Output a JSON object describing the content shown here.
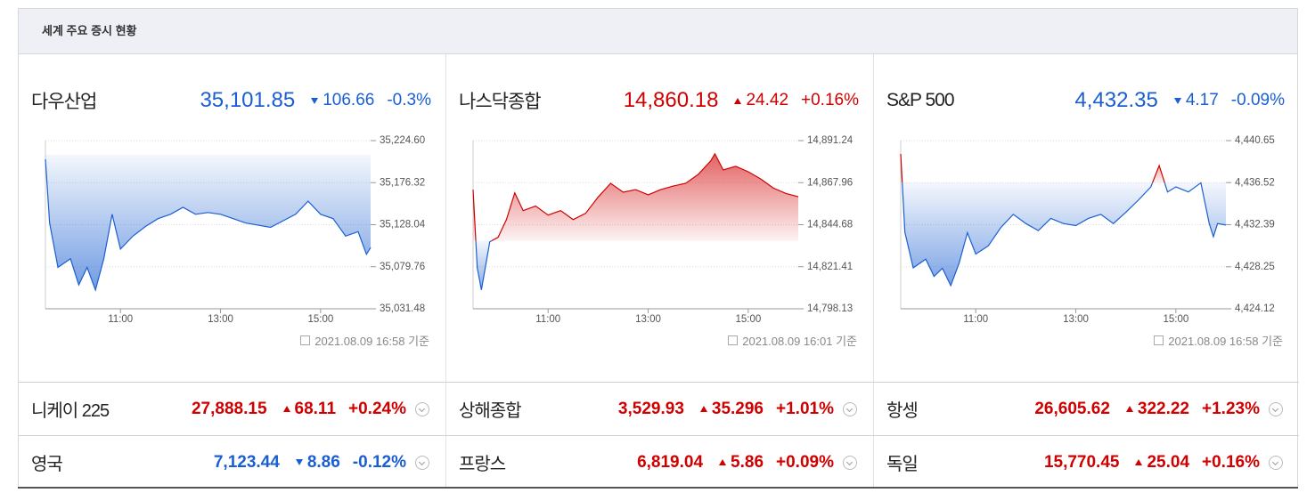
{
  "header": {
    "title": "세계 주요 증시 현황"
  },
  "colors": {
    "up": "#d10000",
    "down": "#1a5fd1"
  },
  "panels": [
    {
      "name": "다우산업",
      "price": "35,101.85",
      "change": "106.66",
      "change_rate": "-0.3%",
      "direction": "down",
      "timestamp": "2021.08.09 16:58 기준",
      "chart_data": {
        "type": "line",
        "x": [
          "09:30",
          "09:35",
          "09:45",
          "10:00",
          "10:10",
          "10:20",
          "10:30",
          "10:40",
          "10:50",
          "11:00",
          "11:15",
          "11:30",
          "11:45",
          "12:00",
          "12:15",
          "12:30",
          "12:45",
          "13:00",
          "13:30",
          "14:00",
          "14:30",
          "14:45",
          "15:00",
          "15:15",
          "15:30",
          "15:45",
          "15:55",
          "16:00"
        ],
        "values": [
          35203.2,
          35130,
          35079,
          35089,
          35059,
          35079,
          35053,
          35089,
          35140,
          35100,
          35115,
          35126,
          35135,
          35140,
          35148,
          35140,
          35142,
          35140,
          35130,
          35125,
          35140,
          35155,
          35140,
          35135,
          35115,
          35120,
          35094,
          35101.85
        ],
        "reference_line": 35208.51,
        "xlim": [
          "09:30",
          "16:00"
        ],
        "xticks": [
          "11:00",
          "13:00",
          "15:00"
        ],
        "ylim": [
          35031.48,
          35224.6
        ],
        "yticks": [
          {
            "value": 35031.48,
            "label": "35,031.48"
          },
          {
            "value": 35079.76,
            "label": "35,079.76"
          },
          {
            "value": 35128.04,
            "label": "35,128.04"
          },
          {
            "value": 35176.32,
            "label": "35,176.32"
          },
          {
            "value": 35224.6,
            "label": "35,224.60"
          }
        ]
      }
    },
    {
      "name": "나스닥종합",
      "price": "14,860.18",
      "change": "24.42",
      "change_rate": "+0.16%",
      "direction": "up",
      "timestamp": "2021.08.09 16:01 기준",
      "chart_data": {
        "type": "line",
        "x": [
          "09:30",
          "09:35",
          "09:40",
          "09:50",
          "10:00",
          "10:10",
          "10:20",
          "10:30",
          "10:45",
          "11:00",
          "11:15",
          "11:30",
          "11:45",
          "12:00",
          "12:15",
          "12:30",
          "12:45",
          "13:00",
          "13:15",
          "13:30",
          "13:45",
          "14:00",
          "14:15",
          "14:20",
          "14:30",
          "14:45",
          "15:00",
          "15:15",
          "15:30",
          "15:45",
          "16:00"
        ],
        "values": [
          14864.1,
          14820.8,
          14808.6,
          14835.2,
          14837.7,
          14847.5,
          14862.3,
          14852.5,
          14855,
          14850,
          14852.5,
          14847.5,
          14851,
          14860,
          14867.6,
          14862.7,
          14864.1,
          14861.2,
          14864.1,
          14866.1,
          14867.6,
          14872.5,
          14880,
          14883.9,
          14875,
          14877,
          14874,
          14870,
          14865,
          14862,
          14860.18
        ],
        "reference_line": 14835.76,
        "xlim": [
          "09:30",
          "16:00"
        ],
        "xticks": [
          "11:00",
          "13:00",
          "15:00"
        ],
        "ylim": [
          14798.13,
          14891.24
        ],
        "yticks": [
          {
            "value": 14798.13,
            "label": "14,798.13"
          },
          {
            "value": 14821.41,
            "label": "14,821.41"
          },
          {
            "value": 14844.68,
            "label": "14,844.68"
          },
          {
            "value": 14867.96,
            "label": "14,867.96"
          },
          {
            "value": 14891.24,
            "label": "14,891.24"
          }
        ]
      }
    },
    {
      "name": "S&P 500",
      "price": "4,432.35",
      "change": "4.17",
      "change_rate": "-0.09%",
      "direction": "down",
      "timestamp": "2021.08.09 16:58 기준",
      "chart_data": {
        "type": "line",
        "x": [
          "09:30",
          "09:35",
          "09:45",
          "10:00",
          "10:10",
          "10:20",
          "10:30",
          "10:40",
          "10:50",
          "11:00",
          "11:15",
          "11:30",
          "11:45",
          "12:00",
          "12:15",
          "12:30",
          "12:45",
          "13:00",
          "13:15",
          "13:30",
          "13:45",
          "14:00",
          "14:15",
          "14:30",
          "14:40",
          "14:50",
          "15:00",
          "15:15",
          "15:30",
          "15:40",
          "15:45",
          "15:50",
          "16:00"
        ],
        "values": [
          4439.34,
          4431.64,
          4428.14,
          4429,
          4427.3,
          4428.1,
          4426.4,
          4428.6,
          4431.6,
          4429.5,
          4430.3,
          4432.1,
          4433.4,
          4432.5,
          4431.8,
          4433,
          4432.5,
          4432.3,
          4433,
          4433.4,
          4432.5,
          4433.6,
          4434.8,
          4436.1,
          4438.2,
          4435.6,
          4436.1,
          4435.6,
          4436.5,
          4432.5,
          4431.2,
          4432.5,
          4432.35
        ],
        "reference_line": 4436.52,
        "xlim": [
          "09:30",
          "16:00"
        ],
        "xticks": [
          "11:00",
          "13:00",
          "15:00"
        ],
        "ylim": [
          4424.12,
          4440.65
        ],
        "yticks": [
          {
            "value": 4424.12,
            "label": "4,424.12"
          },
          {
            "value": 4428.25,
            "label": "4,428.25"
          },
          {
            "value": 4432.39,
            "label": "4,432.39"
          },
          {
            "value": 4436.52,
            "label": "4,436.52"
          },
          {
            "value": 4440.65,
            "label": "4,440.65"
          }
        ]
      }
    }
  ],
  "markets": [
    [
      {
        "name": "니케이 225",
        "price": "27,888.15",
        "change": "68.11",
        "change_rate": "+0.24%",
        "direction": "up"
      },
      {
        "name": "상해종합",
        "price": "3,529.93",
        "change": "35.296",
        "change_rate": "+1.01%",
        "direction": "up"
      },
      {
        "name": "항셍",
        "price": "26,605.62",
        "change": "322.22",
        "change_rate": "+1.23%",
        "direction": "up"
      }
    ],
    [
      {
        "name": "영국",
        "price": "7,123.44",
        "change": "8.86",
        "change_rate": "-0.12%",
        "direction": "down"
      },
      {
        "name": "프랑스",
        "price": "6,819.04",
        "change": "5.86",
        "change_rate": "+0.09%",
        "direction": "up"
      },
      {
        "name": "독일",
        "price": "15,770.45",
        "change": "25.04",
        "change_rate": "+0.16%",
        "direction": "up"
      }
    ]
  ]
}
